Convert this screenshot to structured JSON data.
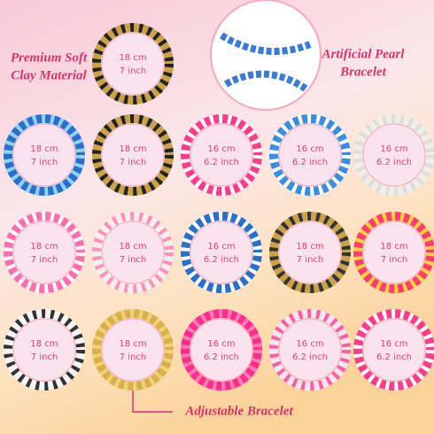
{
  "labels": {
    "clay": [
      "Premium Soft",
      "Clay Material"
    ],
    "pearl": [
      "Artificial Pearl",
      "Bracelet"
    ],
    "adjustable": "Adjustable Bracelet"
  },
  "bracelets": [
    {
      "cm": "18 cm",
      "inch": "7 inch"
    },
    {
      "cm": "18 cm",
      "inch": "7 inch"
    },
    {
      "cm": "18 cm",
      "inch": "7 inch"
    },
    {
      "cm": "16 cm",
      "inch": "6.2 inch"
    },
    {
      "cm": "16 cm",
      "inch": "6.2 inch"
    },
    {
      "cm": "16 cm",
      "inch": "6.2 inch"
    },
    {
      "cm": "18 cm",
      "inch": "7 inch"
    },
    {
      "cm": "18 cm",
      "inch": "7 inch"
    },
    {
      "cm": "16 cm",
      "inch": "6.2 inch"
    },
    {
      "cm": "18 cm",
      "inch": "7 inch"
    },
    {
      "cm": "18 cm",
      "inch": "7 inch"
    },
    {
      "cm": "18 cm",
      "inch": "7 inch"
    },
    {
      "cm": "18 cm",
      "inch": "7 inch"
    },
    {
      "cm": "16 cm",
      "inch": "6.2 inch"
    },
    {
      "cm": "16 cm",
      "inch": "6.2 inch"
    },
    {
      "cm": "16 cm",
      "inch": "6.2 inch"
    }
  ]
}
